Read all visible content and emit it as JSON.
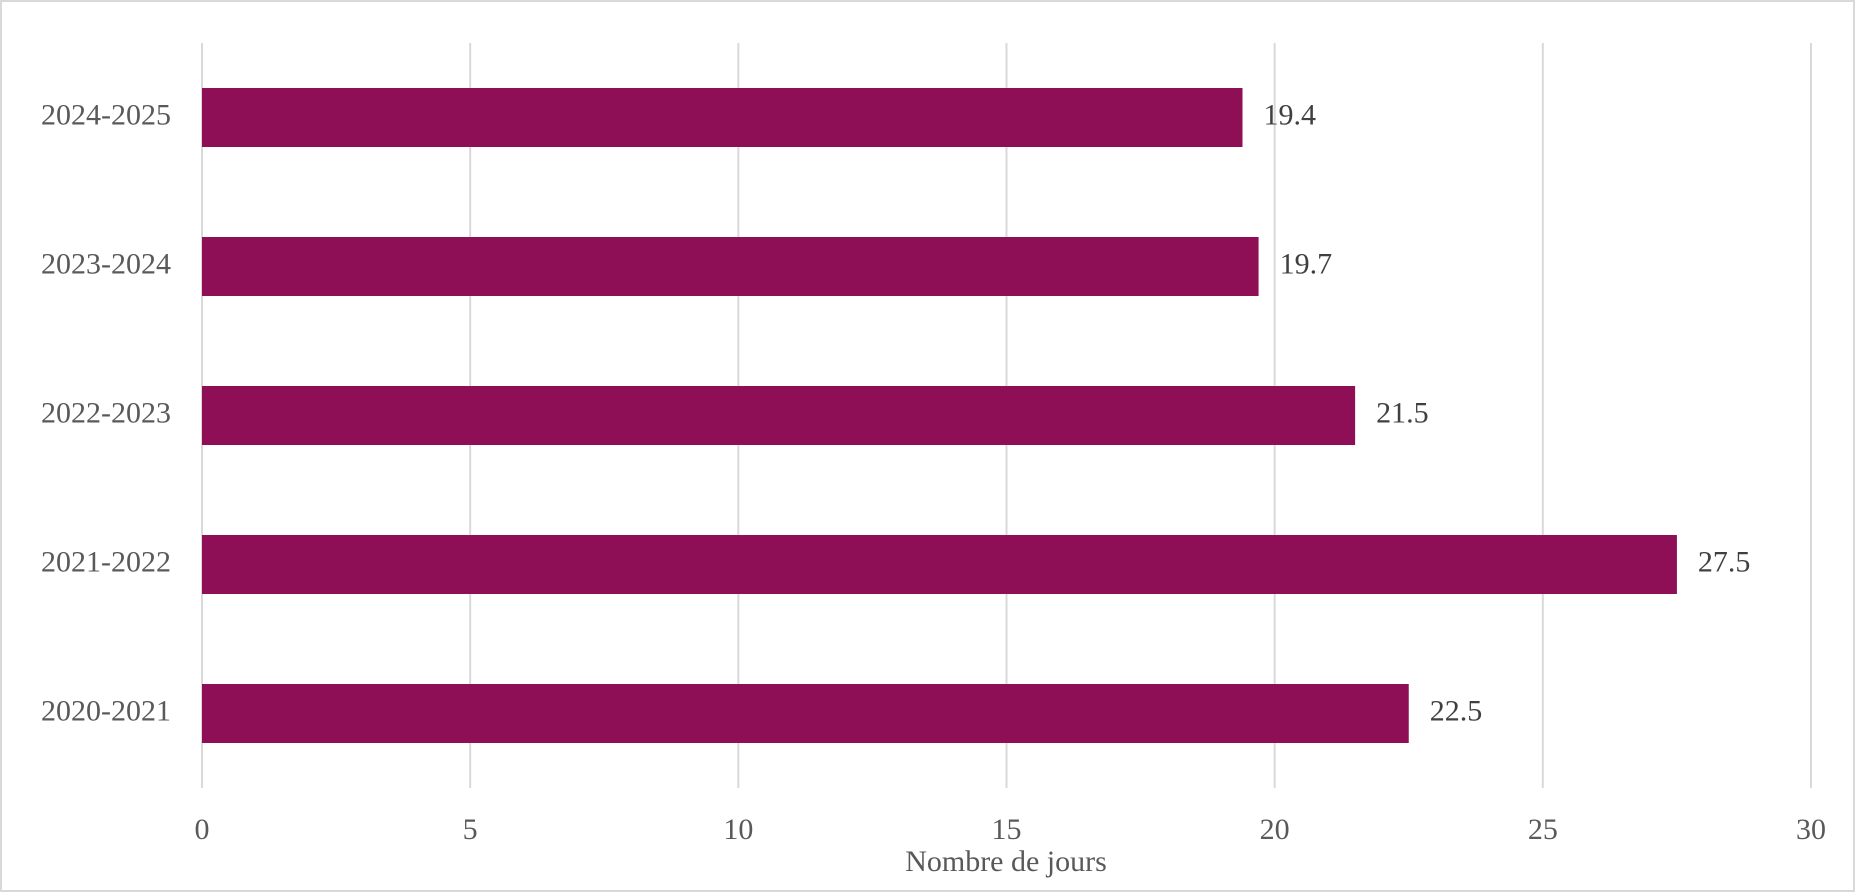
{
  "chart_data": {
    "type": "barh",
    "categories": [
      "2020-2021",
      "2021-2022",
      "2022-2023",
      "2023-2024",
      "2024-2025"
    ],
    "values": [
      22.5,
      27.5,
      21.5,
      19.7,
      19.4
    ],
    "color": "#8e0f55",
    "xlabel": "Nombre de jours",
    "xlim": [
      0,
      30
    ],
    "xticks": [
      0,
      5,
      10,
      15,
      20,
      25,
      30
    ],
    "grid": true
  }
}
